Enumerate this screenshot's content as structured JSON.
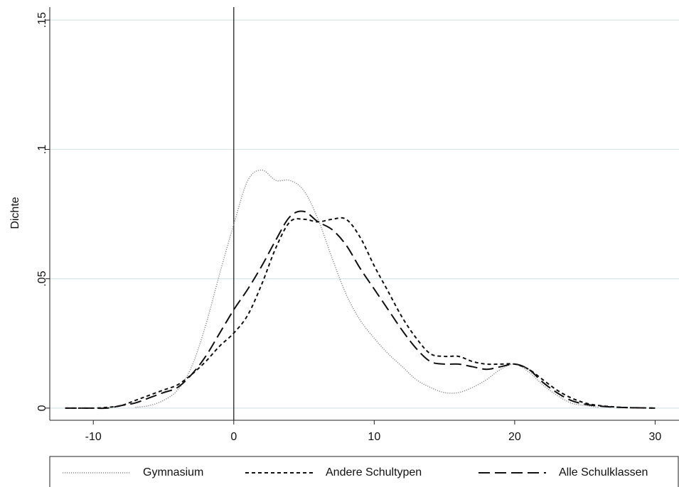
{
  "chart_data": {
    "type": "line",
    "y_label": "Dichte",
    "x": [
      -12,
      -11,
      -10,
      -9,
      -8,
      -7,
      -6,
      -5,
      -4,
      -3,
      -2,
      -1,
      0,
      1,
      2,
      3,
      4,
      5,
      6,
      7,
      8,
      9,
      10,
      11,
      12,
      13,
      14,
      15,
      16,
      17,
      18,
      19,
      20,
      21,
      22,
      23,
      24,
      25,
      26,
      27,
      28,
      29,
      30
    ],
    "series": [
      {
        "name": "Gymnasium",
        "color": "#888888",
        "dash": "dotted",
        "values": [
          null,
          null,
          null,
          null,
          null,
          0.0003,
          0.001,
          0.003,
          0.007,
          0.016,
          0.032,
          0.052,
          0.071,
          0.088,
          0.092,
          0.088,
          0.088,
          0.084,
          0.073,
          0.058,
          0.044,
          0.034,
          0.027,
          0.021,
          0.016,
          0.011,
          0.008,
          0.006,
          0.006,
          0.008,
          0.011,
          0.015,
          0.017,
          0.014,
          0.009,
          0.005,
          0.002,
          0.001,
          0.0003,
          null,
          null,
          null,
          null
        ]
      },
      {
        "name": "Andere Schultypen",
        "color": "#111111",
        "dash": "short",
        "values": [
          0,
          0,
          0,
          0.0003,
          0.001,
          0.003,
          0.005,
          0.007,
          0.009,
          0.013,
          0.018,
          0.024,
          0.029,
          0.036,
          0.048,
          0.062,
          0.072,
          0.073,
          0.072,
          0.073,
          0.073,
          0.066,
          0.055,
          0.045,
          0.035,
          0.027,
          0.021,
          0.02,
          0.02,
          0.018,
          0.017,
          0.017,
          0.017,
          0.015,
          0.011,
          0.007,
          0.004,
          0.002,
          0.001,
          0.0005,
          0.0002,
          0.0001,
          0
        ]
      },
      {
        "name": "Alle Schulklassen",
        "color": "#111111",
        "dash": "long",
        "values": [
          0,
          0,
          0,
          0,
          0.001,
          0.002,
          0.004,
          0.006,
          0.008,
          0.013,
          0.02,
          0.029,
          0.038,
          0.046,
          0.055,
          0.065,
          0.074,
          0.076,
          0.072,
          0.069,
          0.063,
          0.054,
          0.046,
          0.038,
          0.03,
          0.023,
          0.018,
          0.017,
          0.017,
          0.016,
          0.015,
          0.016,
          0.017,
          0.015,
          0.01,
          0.006,
          0.003,
          0.0015,
          0.0008,
          0.0004,
          0.0002,
          0.0001,
          0
        ]
      }
    ],
    "xlim": [
      -13.1,
      31.7
    ],
    "ylim": [
      -0.0047,
      0.155
    ],
    "xticks": [
      -10,
      0,
      10,
      20,
      30
    ],
    "yticks": [
      0,
      {
        "value": 0.05,
        "label": ".05"
      },
      {
        "value": 0.1,
        "label": ".1"
      },
      {
        "value": 0.15,
        "label": ".15"
      }
    ],
    "xline": 0,
    "grid": true,
    "legend": "bottom"
  }
}
